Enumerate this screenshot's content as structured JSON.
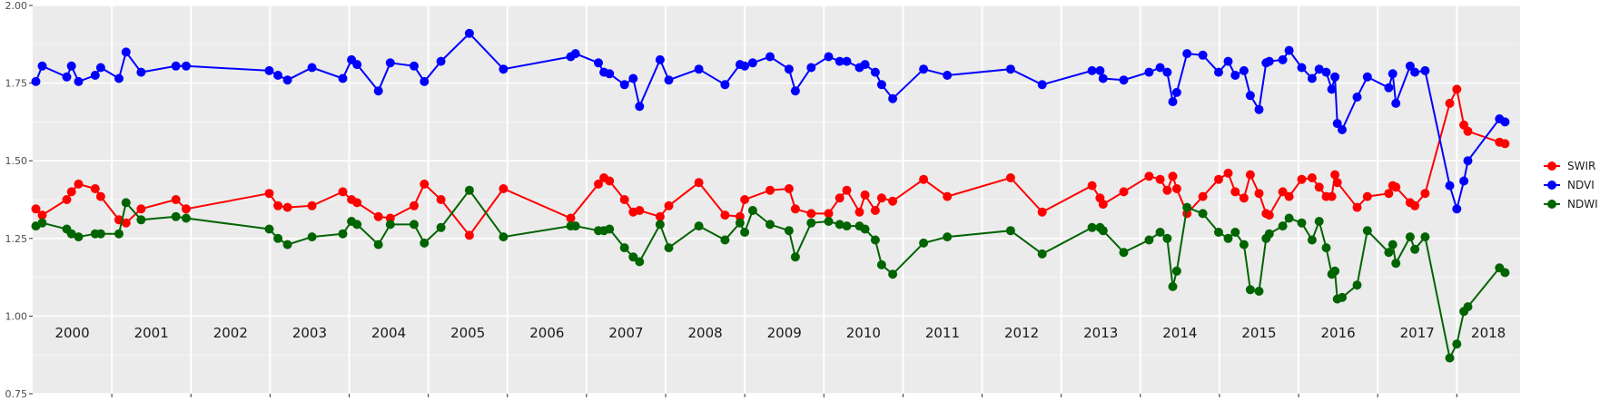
{
  "chart_data": {
    "type": "line",
    "title": "",
    "xlabel": "",
    "ylabel": "",
    "ylim": [
      0.75,
      2.0
    ],
    "y_ticks": [
      "0.75",
      "1.00",
      "1.25",
      "1.50",
      "1.75",
      "2.00"
    ],
    "xlim": [
      2000.0,
      2018.8
    ],
    "grid": true,
    "year_labels": [
      "2000",
      "2001",
      "2002",
      "2003",
      "2004",
      "2005",
      "2006",
      "2007",
      "2008",
      "2009",
      "2010",
      "2011",
      "2012",
      "2013",
      "2014",
      "2015",
      "2016",
      "2017",
      "2018"
    ],
    "legend_position": "right",
    "series": [
      {
        "name": "SWIR",
        "color": "#ff0000",
        "points": [
          [
            2000.04,
            1.345
          ],
          [
            2000.12,
            1.325
          ],
          [
            2000.43,
            1.375
          ],
          [
            2000.49,
            1.4
          ],
          [
            2000.58,
            1.425
          ],
          [
            2000.79,
            1.41
          ],
          [
            2000.86,
            1.385
          ],
          [
            2001.09,
            1.31
          ],
          [
            2001.18,
            1.3
          ],
          [
            2001.37,
            1.345
          ],
          [
            2001.81,
            1.375
          ],
          [
            2001.94,
            1.345
          ],
          [
            2002.99,
            1.395
          ],
          [
            2003.1,
            1.355
          ],
          [
            2003.22,
            1.35
          ],
          [
            2003.53,
            1.355
          ],
          [
            2003.92,
            1.4
          ],
          [
            2004.03,
            1.375
          ],
          [
            2004.1,
            1.365
          ],
          [
            2004.37,
            1.32
          ],
          [
            2004.52,
            1.315
          ],
          [
            2004.82,
            1.355
          ],
          [
            2004.95,
            1.425
          ],
          [
            2005.16,
            1.375
          ],
          [
            2005.52,
            1.26
          ],
          [
            2005.95,
            1.41
          ],
          [
            2006.8,
            1.315
          ],
          [
            2007.15,
            1.425
          ],
          [
            2007.22,
            1.445
          ],
          [
            2007.29,
            1.435
          ],
          [
            2007.48,
            1.375
          ],
          [
            2007.59,
            1.335
          ],
          [
            2007.67,
            1.34
          ],
          [
            2007.93,
            1.32
          ],
          [
            2008.04,
            1.355
          ],
          [
            2008.42,
            1.43
          ],
          [
            2008.75,
            1.325
          ],
          [
            2008.94,
            1.32
          ],
          [
            2009.0,
            1.375
          ],
          [
            2009.32,
            1.405
          ],
          [
            2009.56,
            1.41
          ],
          [
            2009.64,
            1.345
          ],
          [
            2009.84,
            1.33
          ],
          [
            2010.06,
            1.33
          ],
          [
            2010.2,
            1.38
          ],
          [
            2010.29,
            1.405
          ],
          [
            2010.45,
            1.335
          ],
          [
            2010.52,
            1.39
          ],
          [
            2010.65,
            1.34
          ],
          [
            2010.73,
            1.38
          ],
          [
            2010.87,
            1.37
          ],
          [
            2011.26,
            1.44
          ],
          [
            2011.56,
            1.385
          ],
          [
            2012.36,
            1.445
          ],
          [
            2012.76,
            1.335
          ],
          [
            2013.39,
            1.42
          ],
          [
            2013.49,
            1.38
          ],
          [
            2013.53,
            1.36
          ],
          [
            2013.79,
            1.4
          ],
          [
            2014.11,
            1.45
          ],
          [
            2014.25,
            1.44
          ],
          [
            2014.34,
            1.405
          ],
          [
            2014.41,
            1.45
          ],
          [
            2014.46,
            1.41
          ],
          [
            2014.59,
            1.33
          ],
          [
            2014.79,
            1.385
          ],
          [
            2014.99,
            1.44
          ],
          [
            2015.11,
            1.46
          ],
          [
            2015.2,
            1.4
          ],
          [
            2015.31,
            1.38
          ],
          [
            2015.39,
            1.455
          ],
          [
            2015.5,
            1.395
          ],
          [
            2015.59,
            1.33
          ],
          [
            2015.63,
            1.325
          ],
          [
            2015.8,
            1.4
          ],
          [
            2015.88,
            1.385
          ],
          [
            2016.04,
            1.44
          ],
          [
            2016.17,
            1.445
          ],
          [
            2016.26,
            1.415
          ],
          [
            2016.35,
            1.385
          ],
          [
            2016.42,
            1.385
          ],
          [
            2016.46,
            1.455
          ],
          [
            2016.49,
            1.43
          ],
          [
            2016.74,
            1.35
          ],
          [
            2016.87,
            1.385
          ],
          [
            2017.14,
            1.395
          ],
          [
            2017.19,
            1.42
          ],
          [
            2017.23,
            1.415
          ],
          [
            2017.41,
            1.365
          ],
          [
            2017.47,
            1.355
          ],
          [
            2017.6,
            1.395
          ],
          [
            2017.91,
            1.685
          ],
          [
            2018.0,
            1.73
          ],
          [
            2018.09,
            1.615
          ],
          [
            2018.14,
            1.595
          ],
          [
            2018.54,
            1.56
          ],
          [
            2018.61,
            1.555
          ]
        ]
      },
      {
        "name": "NDVI",
        "color": "#0000ff",
        "points": [
          [
            2000.04,
            1.755
          ],
          [
            2000.12,
            1.805
          ],
          [
            2000.43,
            1.77
          ],
          [
            2000.49,
            1.805
          ],
          [
            2000.58,
            1.755
          ],
          [
            2000.79,
            1.775
          ],
          [
            2000.86,
            1.8
          ],
          [
            2001.09,
            1.765
          ],
          [
            2001.18,
            1.85
          ],
          [
            2001.37,
            1.785
          ],
          [
            2001.81,
            1.805
          ],
          [
            2001.94,
            1.805
          ],
          [
            2002.99,
            1.79
          ],
          [
            2003.1,
            1.775
          ],
          [
            2003.22,
            1.76
          ],
          [
            2003.53,
            1.8
          ],
          [
            2003.92,
            1.765
          ],
          [
            2004.03,
            1.825
          ],
          [
            2004.1,
            1.81
          ],
          [
            2004.37,
            1.725
          ],
          [
            2004.52,
            1.815
          ],
          [
            2004.82,
            1.805
          ],
          [
            2004.95,
            1.755
          ],
          [
            2005.16,
            1.82
          ],
          [
            2005.52,
            1.91
          ],
          [
            2005.95,
            1.795
          ],
          [
            2006.8,
            1.835
          ],
          [
            2006.86,
            1.845
          ],
          [
            2007.15,
            1.815
          ],
          [
            2007.22,
            1.785
          ],
          [
            2007.29,
            1.78
          ],
          [
            2007.48,
            1.745
          ],
          [
            2007.59,
            1.765
          ],
          [
            2007.67,
            1.675
          ],
          [
            2007.93,
            1.825
          ],
          [
            2008.04,
            1.76
          ],
          [
            2008.42,
            1.795
          ],
          [
            2008.75,
            1.745
          ],
          [
            2008.94,
            1.81
          ],
          [
            2009.0,
            1.805
          ],
          [
            2009.1,
            1.815
          ],
          [
            2009.32,
            1.835
          ],
          [
            2009.56,
            1.795
          ],
          [
            2009.64,
            1.725
          ],
          [
            2009.84,
            1.8
          ],
          [
            2010.06,
            1.835
          ],
          [
            2010.2,
            1.82
          ],
          [
            2010.29,
            1.82
          ],
          [
            2010.45,
            1.8
          ],
          [
            2010.52,
            1.81
          ],
          [
            2010.65,
            1.785
          ],
          [
            2010.73,
            1.745
          ],
          [
            2010.87,
            1.7
          ],
          [
            2011.26,
            1.795
          ],
          [
            2011.56,
            1.775
          ],
          [
            2012.36,
            1.795
          ],
          [
            2012.76,
            1.745
          ],
          [
            2013.39,
            1.79
          ],
          [
            2013.49,
            1.79
          ],
          [
            2013.53,
            1.765
          ],
          [
            2013.79,
            1.76
          ],
          [
            2014.11,
            1.785
          ],
          [
            2014.25,
            1.8
          ],
          [
            2014.34,
            1.785
          ],
          [
            2014.41,
            1.69
          ],
          [
            2014.46,
            1.72
          ],
          [
            2014.59,
            1.845
          ],
          [
            2014.79,
            1.84
          ],
          [
            2014.99,
            1.785
          ],
          [
            2015.11,
            1.82
          ],
          [
            2015.2,
            1.775
          ],
          [
            2015.31,
            1.79
          ],
          [
            2015.39,
            1.71
          ],
          [
            2015.5,
            1.665
          ],
          [
            2015.59,
            1.815
          ],
          [
            2015.63,
            1.82
          ],
          [
            2015.8,
            1.825
          ],
          [
            2015.88,
            1.855
          ],
          [
            2016.04,
            1.8
          ],
          [
            2016.17,
            1.765
          ],
          [
            2016.26,
            1.795
          ],
          [
            2016.35,
            1.785
          ],
          [
            2016.42,
            1.73
          ],
          [
            2016.46,
            1.77
          ],
          [
            2016.49,
            1.62
          ],
          [
            2016.55,
            1.6
          ],
          [
            2016.74,
            1.705
          ],
          [
            2016.87,
            1.77
          ],
          [
            2017.14,
            1.735
          ],
          [
            2017.19,
            1.78
          ],
          [
            2017.23,
            1.685
          ],
          [
            2017.41,
            1.805
          ],
          [
            2017.47,
            1.785
          ],
          [
            2017.6,
            1.79
          ],
          [
            2017.91,
            1.42
          ],
          [
            2018.0,
            1.345
          ],
          [
            2018.09,
            1.435
          ],
          [
            2018.14,
            1.5
          ],
          [
            2018.54,
            1.635
          ],
          [
            2018.61,
            1.625
          ]
        ]
      },
      {
        "name": "NDWI",
        "color": "#006400",
        "points": [
          [
            2000.04,
            1.29
          ],
          [
            2000.12,
            1.3
          ],
          [
            2000.43,
            1.28
          ],
          [
            2000.49,
            1.265
          ],
          [
            2000.58,
            1.255
          ],
          [
            2000.79,
            1.265
          ],
          [
            2000.86,
            1.265
          ],
          [
            2001.09,
            1.265
          ],
          [
            2001.18,
            1.365
          ],
          [
            2001.37,
            1.31
          ],
          [
            2001.81,
            1.32
          ],
          [
            2001.94,
            1.315
          ],
          [
            2002.99,
            1.28
          ],
          [
            2003.1,
            1.25
          ],
          [
            2003.22,
            1.23
          ],
          [
            2003.53,
            1.255
          ],
          [
            2003.92,
            1.265
          ],
          [
            2004.03,
            1.305
          ],
          [
            2004.1,
            1.295
          ],
          [
            2004.37,
            1.23
          ],
          [
            2004.52,
            1.295
          ],
          [
            2004.82,
            1.295
          ],
          [
            2004.95,
            1.235
          ],
          [
            2005.16,
            1.285
          ],
          [
            2005.52,
            1.405
          ],
          [
            2005.95,
            1.255
          ],
          [
            2006.8,
            1.29
          ],
          [
            2006.86,
            1.29
          ],
          [
            2007.15,
            1.275
          ],
          [
            2007.22,
            1.275
          ],
          [
            2007.29,
            1.28
          ],
          [
            2007.48,
            1.22
          ],
          [
            2007.59,
            1.19
          ],
          [
            2007.67,
            1.175
          ],
          [
            2007.93,
            1.295
          ],
          [
            2008.04,
            1.22
          ],
          [
            2008.42,
            1.29
          ],
          [
            2008.75,
            1.245
          ],
          [
            2008.94,
            1.3
          ],
          [
            2009.0,
            1.27
          ],
          [
            2009.1,
            1.34
          ],
          [
            2009.32,
            1.295
          ],
          [
            2009.56,
            1.275
          ],
          [
            2009.64,
            1.19
          ],
          [
            2009.84,
            1.3
          ],
          [
            2010.06,
            1.305
          ],
          [
            2010.2,
            1.295
          ],
          [
            2010.29,
            1.29
          ],
          [
            2010.45,
            1.29
          ],
          [
            2010.52,
            1.28
          ],
          [
            2010.65,
            1.245
          ],
          [
            2010.73,
            1.165
          ],
          [
            2010.87,
            1.135
          ],
          [
            2011.26,
            1.235
          ],
          [
            2011.56,
            1.255
          ],
          [
            2012.36,
            1.275
          ],
          [
            2012.76,
            1.2
          ],
          [
            2013.39,
            1.285
          ],
          [
            2013.49,
            1.285
          ],
          [
            2013.53,
            1.275
          ],
          [
            2013.79,
            1.205
          ],
          [
            2014.11,
            1.245
          ],
          [
            2014.25,
            1.27
          ],
          [
            2014.34,
            1.25
          ],
          [
            2014.41,
            1.095
          ],
          [
            2014.46,
            1.145
          ],
          [
            2014.59,
            1.35
          ],
          [
            2014.79,
            1.33
          ],
          [
            2014.99,
            1.27
          ],
          [
            2015.11,
            1.25
          ],
          [
            2015.2,
            1.27
          ],
          [
            2015.31,
            1.23
          ],
          [
            2015.39,
            1.085
          ],
          [
            2015.5,
            1.08
          ],
          [
            2015.59,
            1.25
          ],
          [
            2015.63,
            1.265
          ],
          [
            2015.8,
            1.29
          ],
          [
            2015.88,
            1.315
          ],
          [
            2016.04,
            1.3
          ],
          [
            2016.17,
            1.245
          ],
          [
            2016.26,
            1.305
          ],
          [
            2016.35,
            1.22
          ],
          [
            2016.42,
            1.135
          ],
          [
            2016.46,
            1.145
          ],
          [
            2016.49,
            1.055
          ],
          [
            2016.55,
            1.06
          ],
          [
            2016.74,
            1.1
          ],
          [
            2016.87,
            1.275
          ],
          [
            2017.14,
            1.205
          ],
          [
            2017.19,
            1.23
          ],
          [
            2017.23,
            1.17
          ],
          [
            2017.41,
            1.255
          ],
          [
            2017.47,
            1.215
          ],
          [
            2017.6,
            1.255
          ],
          [
            2017.91,
            0.865
          ],
          [
            2018.0,
            0.91
          ],
          [
            2018.09,
            1.015
          ],
          [
            2018.14,
            1.03
          ],
          [
            2018.54,
            1.155
          ],
          [
            2018.61,
            1.14
          ]
        ]
      }
    ]
  }
}
